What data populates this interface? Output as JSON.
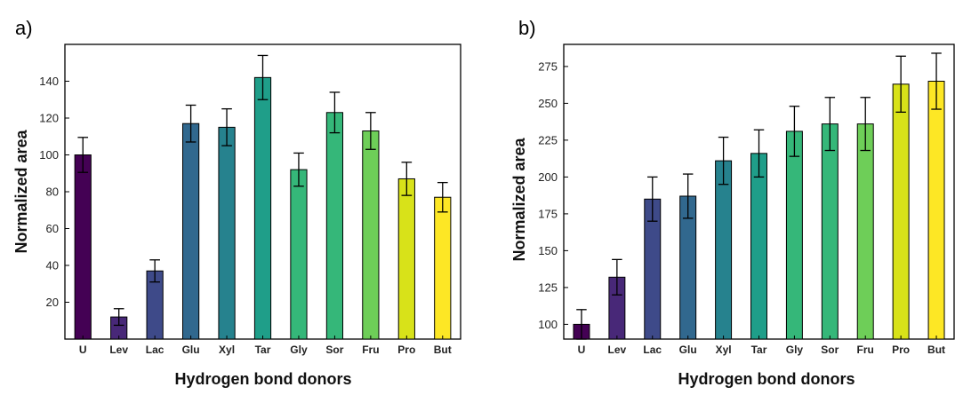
{
  "chart_data": [
    {
      "type": "bar",
      "panel": "a)",
      "xlabel": "Hydrogen bond donors",
      "ylabel": "Normalized area",
      "ylim": [
        0,
        160
      ],
      "yticks": [
        20,
        40,
        60,
        80,
        100,
        120,
        140
      ],
      "categories": [
        "U",
        "Lev",
        "Lac",
        "Glu",
        "Xyl",
        "Tar",
        "Gly",
        "Sor",
        "Fru",
        "Pro",
        "But"
      ],
      "values": [
        100,
        12,
        37,
        117,
        115,
        142,
        92,
        123,
        113,
        87,
        77
      ],
      "errors": [
        9.5,
        4.5,
        6,
        10,
        10,
        12,
        9,
        11,
        10,
        9,
        8
      ],
      "colors": [
        "#440154",
        "#482878",
        "#3e4a89",
        "#31688e",
        "#26828e",
        "#1f9e89",
        "#35b779",
        "#35b779",
        "#6ece58",
        "#d8e219",
        "#fde725"
      ]
    },
    {
      "type": "bar",
      "panel": "b)",
      "xlabel": "Hydrogen bond donors",
      "ylabel": "Normalized area",
      "ylim": [
        90,
        290
      ],
      "yticks": [
        100,
        125,
        150,
        175,
        200,
        225,
        250,
        275
      ],
      "categories": [
        "U",
        "Lev",
        "Lac",
        "Glu",
        "Xyl",
        "Tar",
        "Gly",
        "Sor",
        "Fru",
        "Pro",
        "But"
      ],
      "values": [
        100,
        132,
        185,
        187,
        211,
        216,
        231,
        236,
        236,
        263,
        265
      ],
      "errors": [
        10,
        12,
        15,
        15,
        16,
        16,
        17,
        18,
        18,
        19,
        19
      ],
      "colors": [
        "#440154",
        "#482878",
        "#3e4a89",
        "#31688e",
        "#26828e",
        "#1f9e89",
        "#35b779",
        "#35b779",
        "#6ece58",
        "#d8e219",
        "#fde725"
      ]
    }
  ]
}
